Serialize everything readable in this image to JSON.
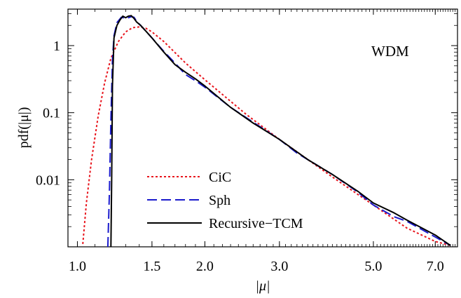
{
  "chart_data": {
    "type": "line",
    "xlabel": "|μ|",
    "ylabel": "pdf(|μ|)",
    "annotation": "WDM",
    "x_scale": "log",
    "y_scale": "log",
    "xlim": [
      0.95,
      7.9
    ],
    "ylim": [
      0.001,
      3.5
    ],
    "x_ticks": [
      {
        "value": 1.0,
        "label": "1.0"
      },
      {
        "value": 1.5,
        "label": "1.5"
      },
      {
        "value": 2.0,
        "label": "2.0"
      },
      {
        "value": 3.0,
        "label": "3.0"
      },
      {
        "value": 5.0,
        "label": "5.0"
      },
      {
        "value": 7.0,
        "label": "7.0"
      }
    ],
    "y_ticks": [
      {
        "value": 1,
        "label": "1"
      },
      {
        "value": 0.1,
        "label": "0.1"
      },
      {
        "value": 0.01,
        "label": "0.01"
      }
    ],
    "legend_position": "bottom-left",
    "series": [
      {
        "name": "CiC",
        "color": "#e8141c",
        "dash": "dotted",
        "x": [
          1.03,
          1.05,
          1.08,
          1.12,
          1.16,
          1.2,
          1.25,
          1.3,
          1.35,
          1.4,
          1.45,
          1.5,
          1.6,
          1.8,
          2.0,
          2.5,
          3.0,
          4.0,
          5.0,
          6.0,
          7.0,
          7.6
        ],
        "y": [
          0.0011,
          0.0045,
          0.02,
          0.09,
          0.28,
          0.65,
          1.15,
          1.6,
          1.85,
          1.9,
          1.82,
          1.6,
          1.15,
          0.55,
          0.31,
          0.095,
          0.04,
          0.011,
          0.0042,
          0.0019,
          0.0012,
          0.00105
        ]
      },
      {
        "name": "Sph",
        "color": "#1a1acc",
        "dash": "dashed",
        "x": [
          1.18,
          1.19,
          1.2,
          1.21,
          1.22,
          1.24,
          1.27,
          1.3,
          1.32,
          1.34,
          1.36,
          1.38,
          1.41,
          1.45,
          1.5,
          1.6,
          1.7,
          1.78,
          1.8,
          1.9,
          2.0,
          2.3,
          2.6,
          3.0,
          3.3,
          3.5,
          4.0,
          4.6,
          5.0,
          5.6,
          6.0,
          7.0,
          7.6
        ],
        "y": [
          0.001,
          0.006,
          0.08,
          0.6,
          1.4,
          2.2,
          2.65,
          2.55,
          2.6,
          2.7,
          2.65,
          2.3,
          2.0,
          1.65,
          1.3,
          0.82,
          0.55,
          0.4,
          0.37,
          0.3,
          0.24,
          0.12,
          0.072,
          0.04,
          0.025,
          0.02,
          0.012,
          0.0065,
          0.0042,
          0.0028,
          0.0024,
          0.0014,
          0.00105
        ]
      },
      {
        "name": "Recursive−TCM",
        "color": "#000000",
        "dash": "solid",
        "x": [
          1.2,
          1.205,
          1.21,
          1.22,
          1.24,
          1.26,
          1.28,
          1.3,
          1.32,
          1.34,
          1.36,
          1.38,
          1.41,
          1.45,
          1.5,
          1.6,
          1.7,
          1.8,
          1.9,
          2.0,
          2.3,
          2.6,
          3.0,
          3.3,
          3.5,
          4.0,
          4.6,
          5.0,
          5.6,
          6.0,
          7.0,
          7.6
        ],
        "y": [
          0.001,
          0.01,
          0.25,
          1.3,
          2.0,
          2.4,
          2.75,
          2.6,
          2.75,
          2.8,
          2.55,
          2.25,
          2.0,
          1.65,
          1.3,
          0.8,
          0.52,
          0.4,
          0.32,
          0.25,
          0.12,
          0.07,
          0.04,
          0.026,
          0.02,
          0.012,
          0.0067,
          0.0045,
          0.0032,
          0.0025,
          0.0015,
          0.00105
        ]
      }
    ]
  }
}
